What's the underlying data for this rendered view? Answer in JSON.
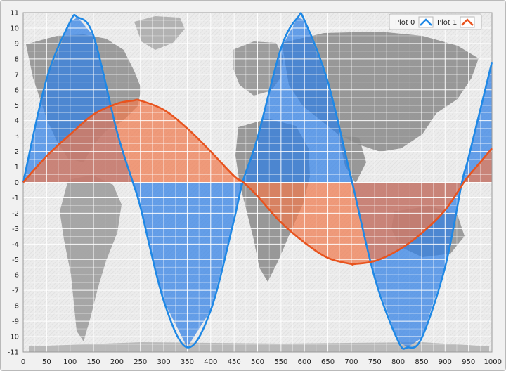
{
  "chart_data": {
    "type": "area",
    "title": "",
    "xlabel": "",
    "ylabel": "",
    "xlim": [
      0,
      1000
    ],
    "ylim": [
      -11,
      11
    ],
    "grid": true,
    "legend_position": "top-right",
    "background": "world map",
    "xticks": [
      "0",
      "50",
      "100",
      "150",
      "200",
      "250",
      "300",
      "350",
      "400",
      "450",
      "500",
      "550",
      "600",
      "650",
      "700",
      "750",
      "800",
      "850",
      "900",
      "950",
      "1000"
    ],
    "yticks": [
      "11",
      "10",
      "9",
      "8",
      "7",
      "6",
      "5",
      "4",
      "3",
      "2",
      "1",
      "0",
      "-1",
      "-2",
      "-3",
      "-4",
      "-5",
      "-6",
      "-7",
      "-8",
      "-9",
      "-10",
      "-11"
    ],
    "series": [
      {
        "name": "Plot 0",
        "color": "#1f88e5",
        "fill": "#2f7fe6",
        "x": [
          0,
          50,
          100,
          116,
          150,
          200,
          234,
          250,
          300,
          350,
          400,
          450,
          468,
          500,
          550,
          586,
          600,
          650,
          700,
          702,
          750,
          800,
          820,
          850,
          900,
          936,
          950,
          1000
        ],
        "y": [
          0,
          6.7,
          10.4,
          10.7,
          9.5,
          3.3,
          0,
          -1.6,
          -7.7,
          -10.7,
          -8.3,
          -2.4,
          0,
          2.9,
          8.7,
          10.7,
          10.5,
          6.5,
          0.2,
          0,
          -6.2,
          -10.3,
          -10.7,
          -10.1,
          -5.5,
          0,
          1.6,
          7.8
        ]
      },
      {
        "name": "Plot 1",
        "color": "#e8541f",
        "fill": "#f07a4e",
        "x": [
          0,
          50,
          100,
          150,
          200,
          235,
          250,
          300,
          350,
          400,
          450,
          470,
          500,
          550,
          600,
          650,
          700,
          705,
          750,
          800,
          850,
          900,
          940,
          950,
          1000
        ],
        "y": [
          0,
          1.7,
          3.1,
          4.4,
          5.1,
          5.3,
          5.3,
          4.7,
          3.5,
          2.0,
          0.4,
          0,
          -0.9,
          -2.6,
          -3.9,
          -4.9,
          -5.3,
          -5.3,
          -5.1,
          -4.4,
          -3.3,
          -1.8,
          0,
          0.4,
          2.2
        ]
      }
    ]
  }
}
